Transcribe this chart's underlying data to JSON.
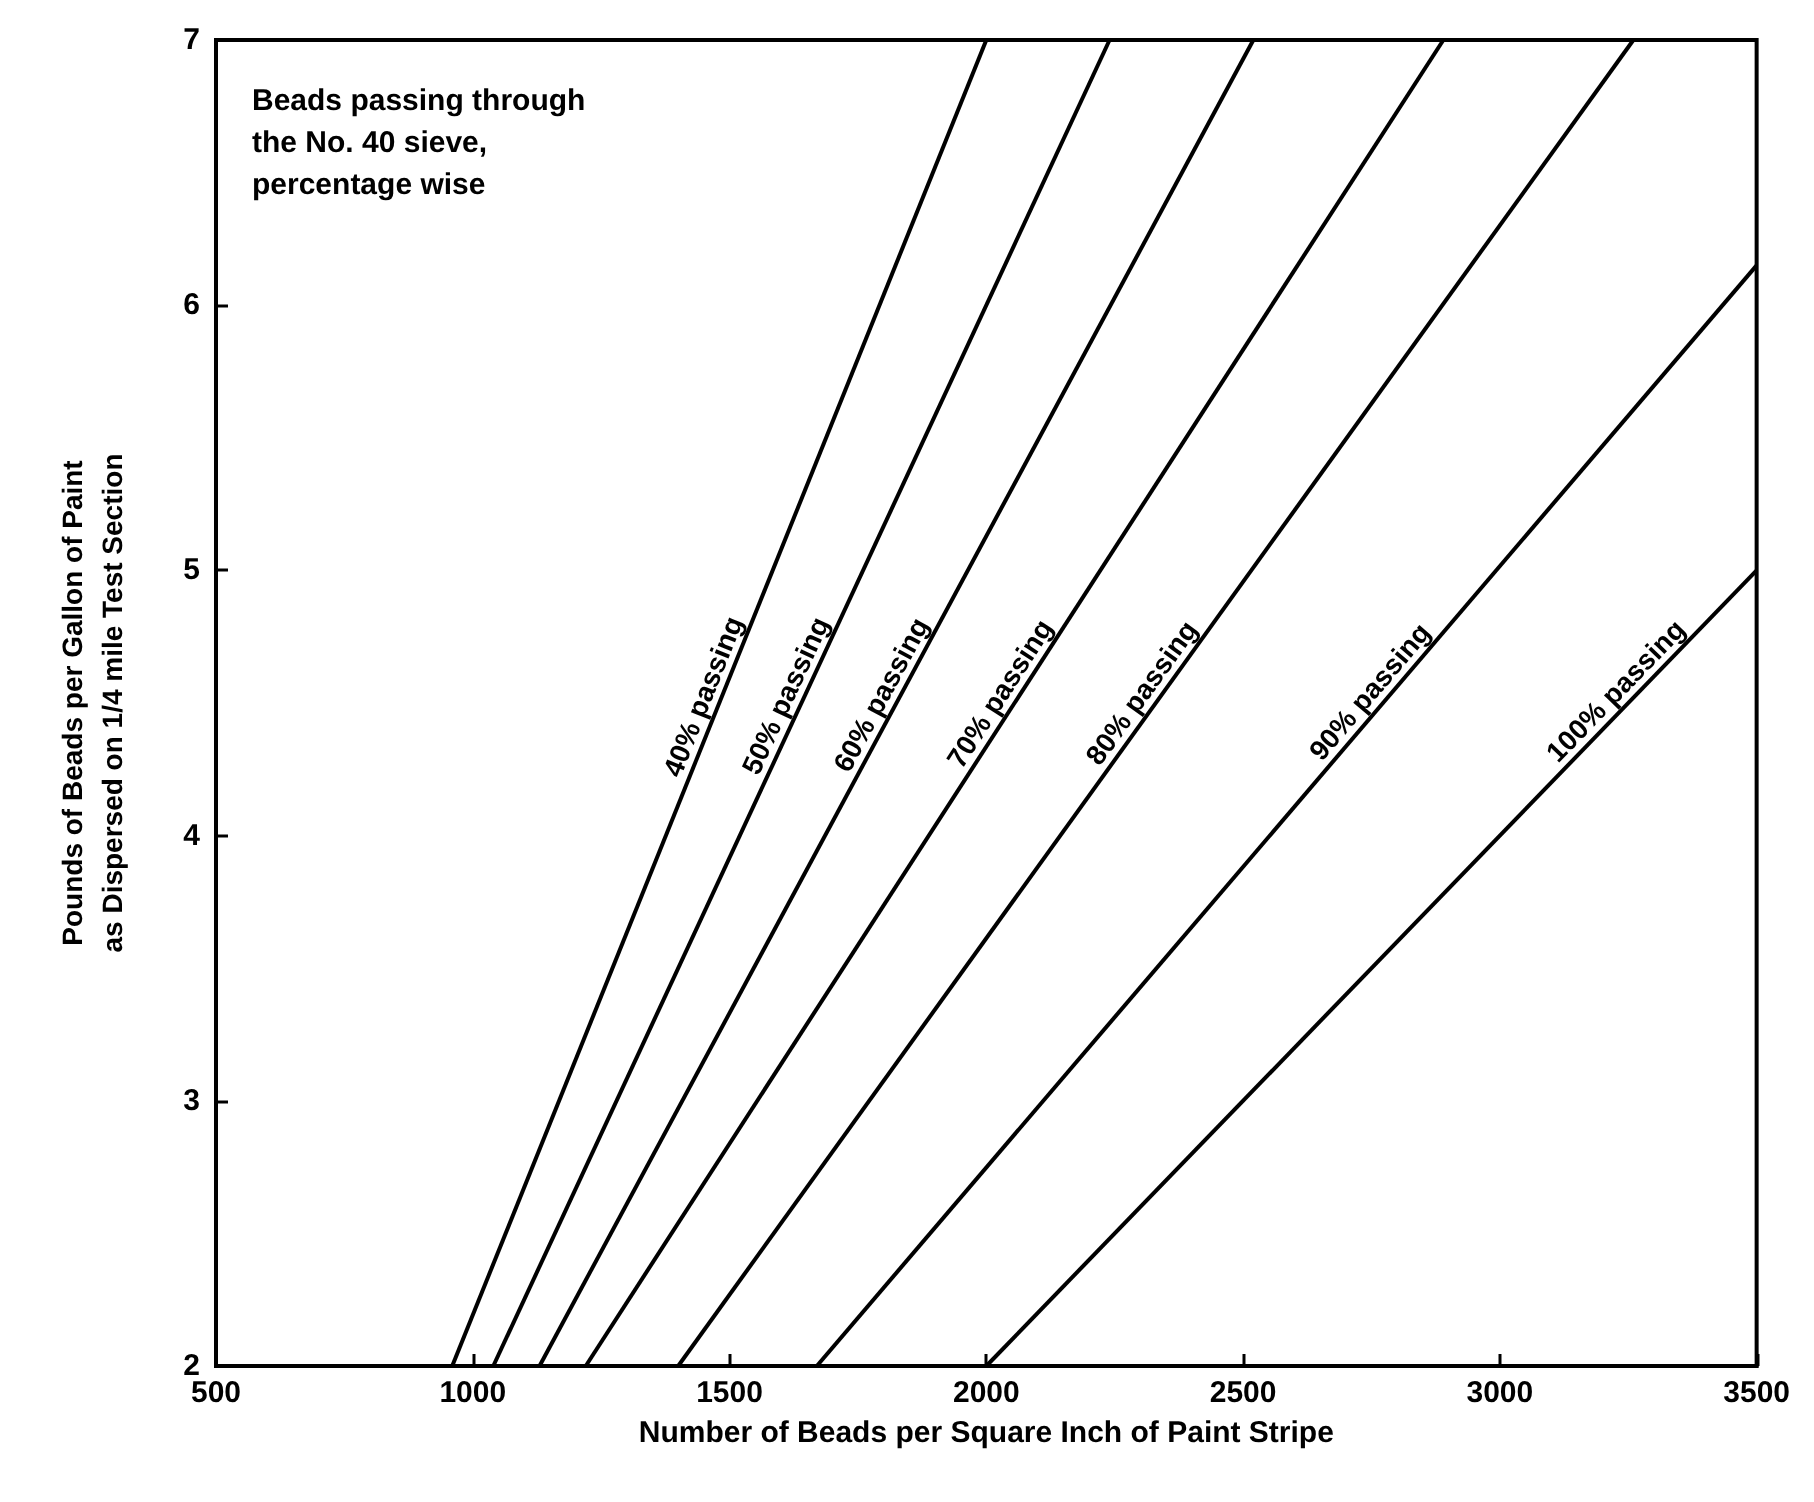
{
  "chart_data": {
    "type": "line",
    "xlabel": "Number of Beads per Square Inch of Paint Stripe",
    "ylabel": "Pounds of Beads per Gallon of Paint\nas Dispersed on 1/4 mile Test Section",
    "xlim": [
      500,
      3500
    ],
    "xticks": [
      500,
      1000,
      1500,
      2000,
      2500,
      3000,
      3500
    ],
    "ylim": [
      2,
      7
    ],
    "yticks": [
      2,
      3,
      4,
      5,
      6,
      7
    ],
    "grid": false,
    "legend": false,
    "marker": "none",
    "line_style": "solid",
    "annotations": [
      "Beads passing through the No. 40 sieve, percentage wise"
    ],
    "series": [
      {
        "name": "40% passing",
        "color": "#000000",
        "x": [
          960,
          2000
        ],
        "values": [
          2,
          7
        ]
      },
      {
        "name": "50% passing",
        "color": "#000000",
        "x": [
          1040,
          2240
        ],
        "values": [
          2,
          7
        ]
      },
      {
        "name": "60% passing",
        "color": "#000000",
        "x": [
          1130,
          2520
        ],
        "values": [
          2,
          7
        ]
      },
      {
        "name": "70% passing",
        "color": "#000000",
        "x": [
          1220,
          2890
        ],
        "values": [
          2,
          7
        ]
      },
      {
        "name": "80% passing",
        "color": "#000000",
        "x": [
          1400,
          3260
        ],
        "values": [
          2,
          7
        ]
      },
      {
        "name": "90% passing",
        "color": "#000000",
        "x": [
          1670,
          3500
        ],
        "values": [
          2,
          6.15
        ]
      },
      {
        "name": "100% passing",
        "color": "#000000",
        "x": [
          2000,
          3500
        ],
        "values": [
          2,
          5
        ]
      }
    ]
  }
}
